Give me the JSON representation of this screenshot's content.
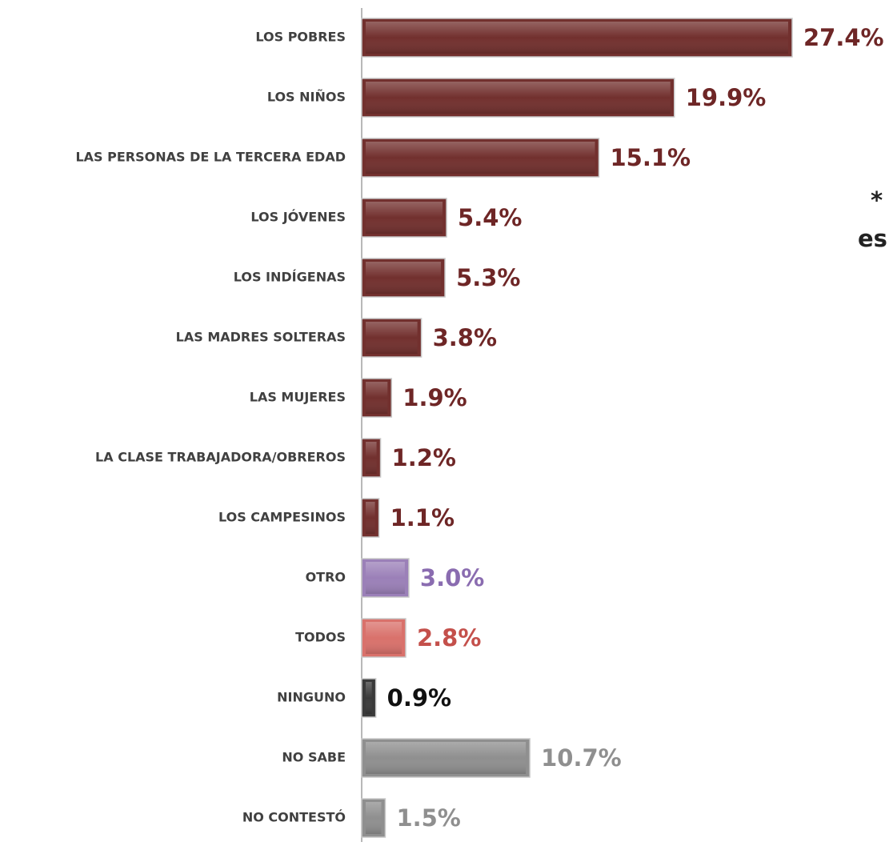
{
  "chart_data": {
    "type": "barh",
    "categories": [
      "LOS POBRES",
      "LOS NIÑOS",
      "LAS PERSONAS DE LA TERCERA EDAD",
      "LOS JÓVENES",
      "LOS INDÍGENAS",
      "LAS MADRES SOLTERAS",
      "LAS MUJERES",
      "LA CLASE TRABAJADORA/OBREROS",
      "LOS CAMPESINOS",
      "OTRO",
      "TODOS",
      "NINGUNO",
      "NO SABE",
      "NO CONTESTÓ"
    ],
    "values": [
      27.4,
      19.9,
      15.1,
      5.4,
      5.3,
      3.8,
      1.9,
      1.2,
      1.1,
      3.0,
      2.8,
      0.9,
      10.7,
      1.5
    ],
    "value_labels": [
      "27.4%",
      "19.9%",
      "15.1%",
      "5.4%",
      "5.3%",
      "3.8%",
      "1.9%",
      "1.2%",
      "1.1%",
      "3.0%",
      "2.8%",
      "0.9%",
      "10.7%",
      "1.5%"
    ],
    "colors": [
      "#72302e",
      "#72302e",
      "#72302e",
      "#72302e",
      "#72302e",
      "#72302e",
      "#72302e",
      "#72302e",
      "#72302e",
      "#9b80b8",
      "#d9716b",
      "#3a3a3a",
      "#8f8f8f",
      "#8f8f8f"
    ],
    "label_colors": [
      "#6e2626",
      "#6e2626",
      "#6e2626",
      "#6e2626",
      "#6e2626",
      "#6e2626",
      "#6e2626",
      "#6e2626",
      "#6e2626",
      "#8a6cb0",
      "#c4504b",
      "#111111",
      "#8f8f8f",
      "#8f8f8f"
    ],
    "annotations": [
      "*",
      "es"
    ]
  }
}
